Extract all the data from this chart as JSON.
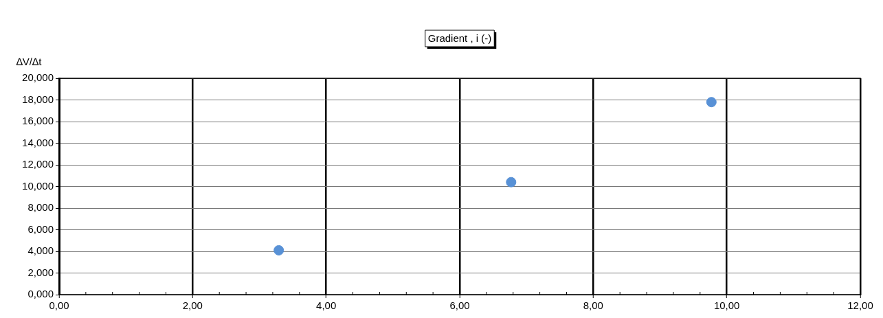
{
  "chart_data": {
    "type": "scatter",
    "title": "Gradient , i (-)",
    "ylabel": "∆V/∆t",
    "x": [
      3.29,
      6.77,
      9.77
    ],
    "series": [
      {
        "color": "#5891d6",
        "values": [
          4.1,
          10.4,
          17.8
        ]
      }
    ],
    "xlim": [
      0,
      12
    ],
    "xticks": [
      {
        "value": 0,
        "label": "0,00"
      },
      {
        "value": 2,
        "label": "2,00"
      },
      {
        "value": 4,
        "label": "4,00"
      },
      {
        "value": 6,
        "label": "6,00"
      },
      {
        "value": 8,
        "label": "8,00"
      },
      {
        "value": 10,
        "label": "10,00"
      },
      {
        "value": 12,
        "label": "12,00"
      }
    ],
    "ylim": [
      0,
      20
    ],
    "yticks": [
      {
        "value": 0,
        "label": "0,000"
      },
      {
        "value": 2,
        "label": "2,000"
      },
      {
        "value": 4,
        "label": "4,000"
      },
      {
        "value": 6,
        "label": "6,000"
      },
      {
        "value": 8,
        "label": "8,000"
      },
      {
        "value": 10,
        "label": "10,000"
      },
      {
        "value": 12,
        "label": "12,000"
      },
      {
        "value": 14,
        "label": "14,000"
      },
      {
        "value": 16,
        "label": "16,000"
      },
      {
        "value": 18,
        "label": "18,000"
      },
      {
        "value": 20,
        "label": "20,000"
      }
    ],
    "grid": true,
    "legend": false,
    "marker": "circle"
  }
}
